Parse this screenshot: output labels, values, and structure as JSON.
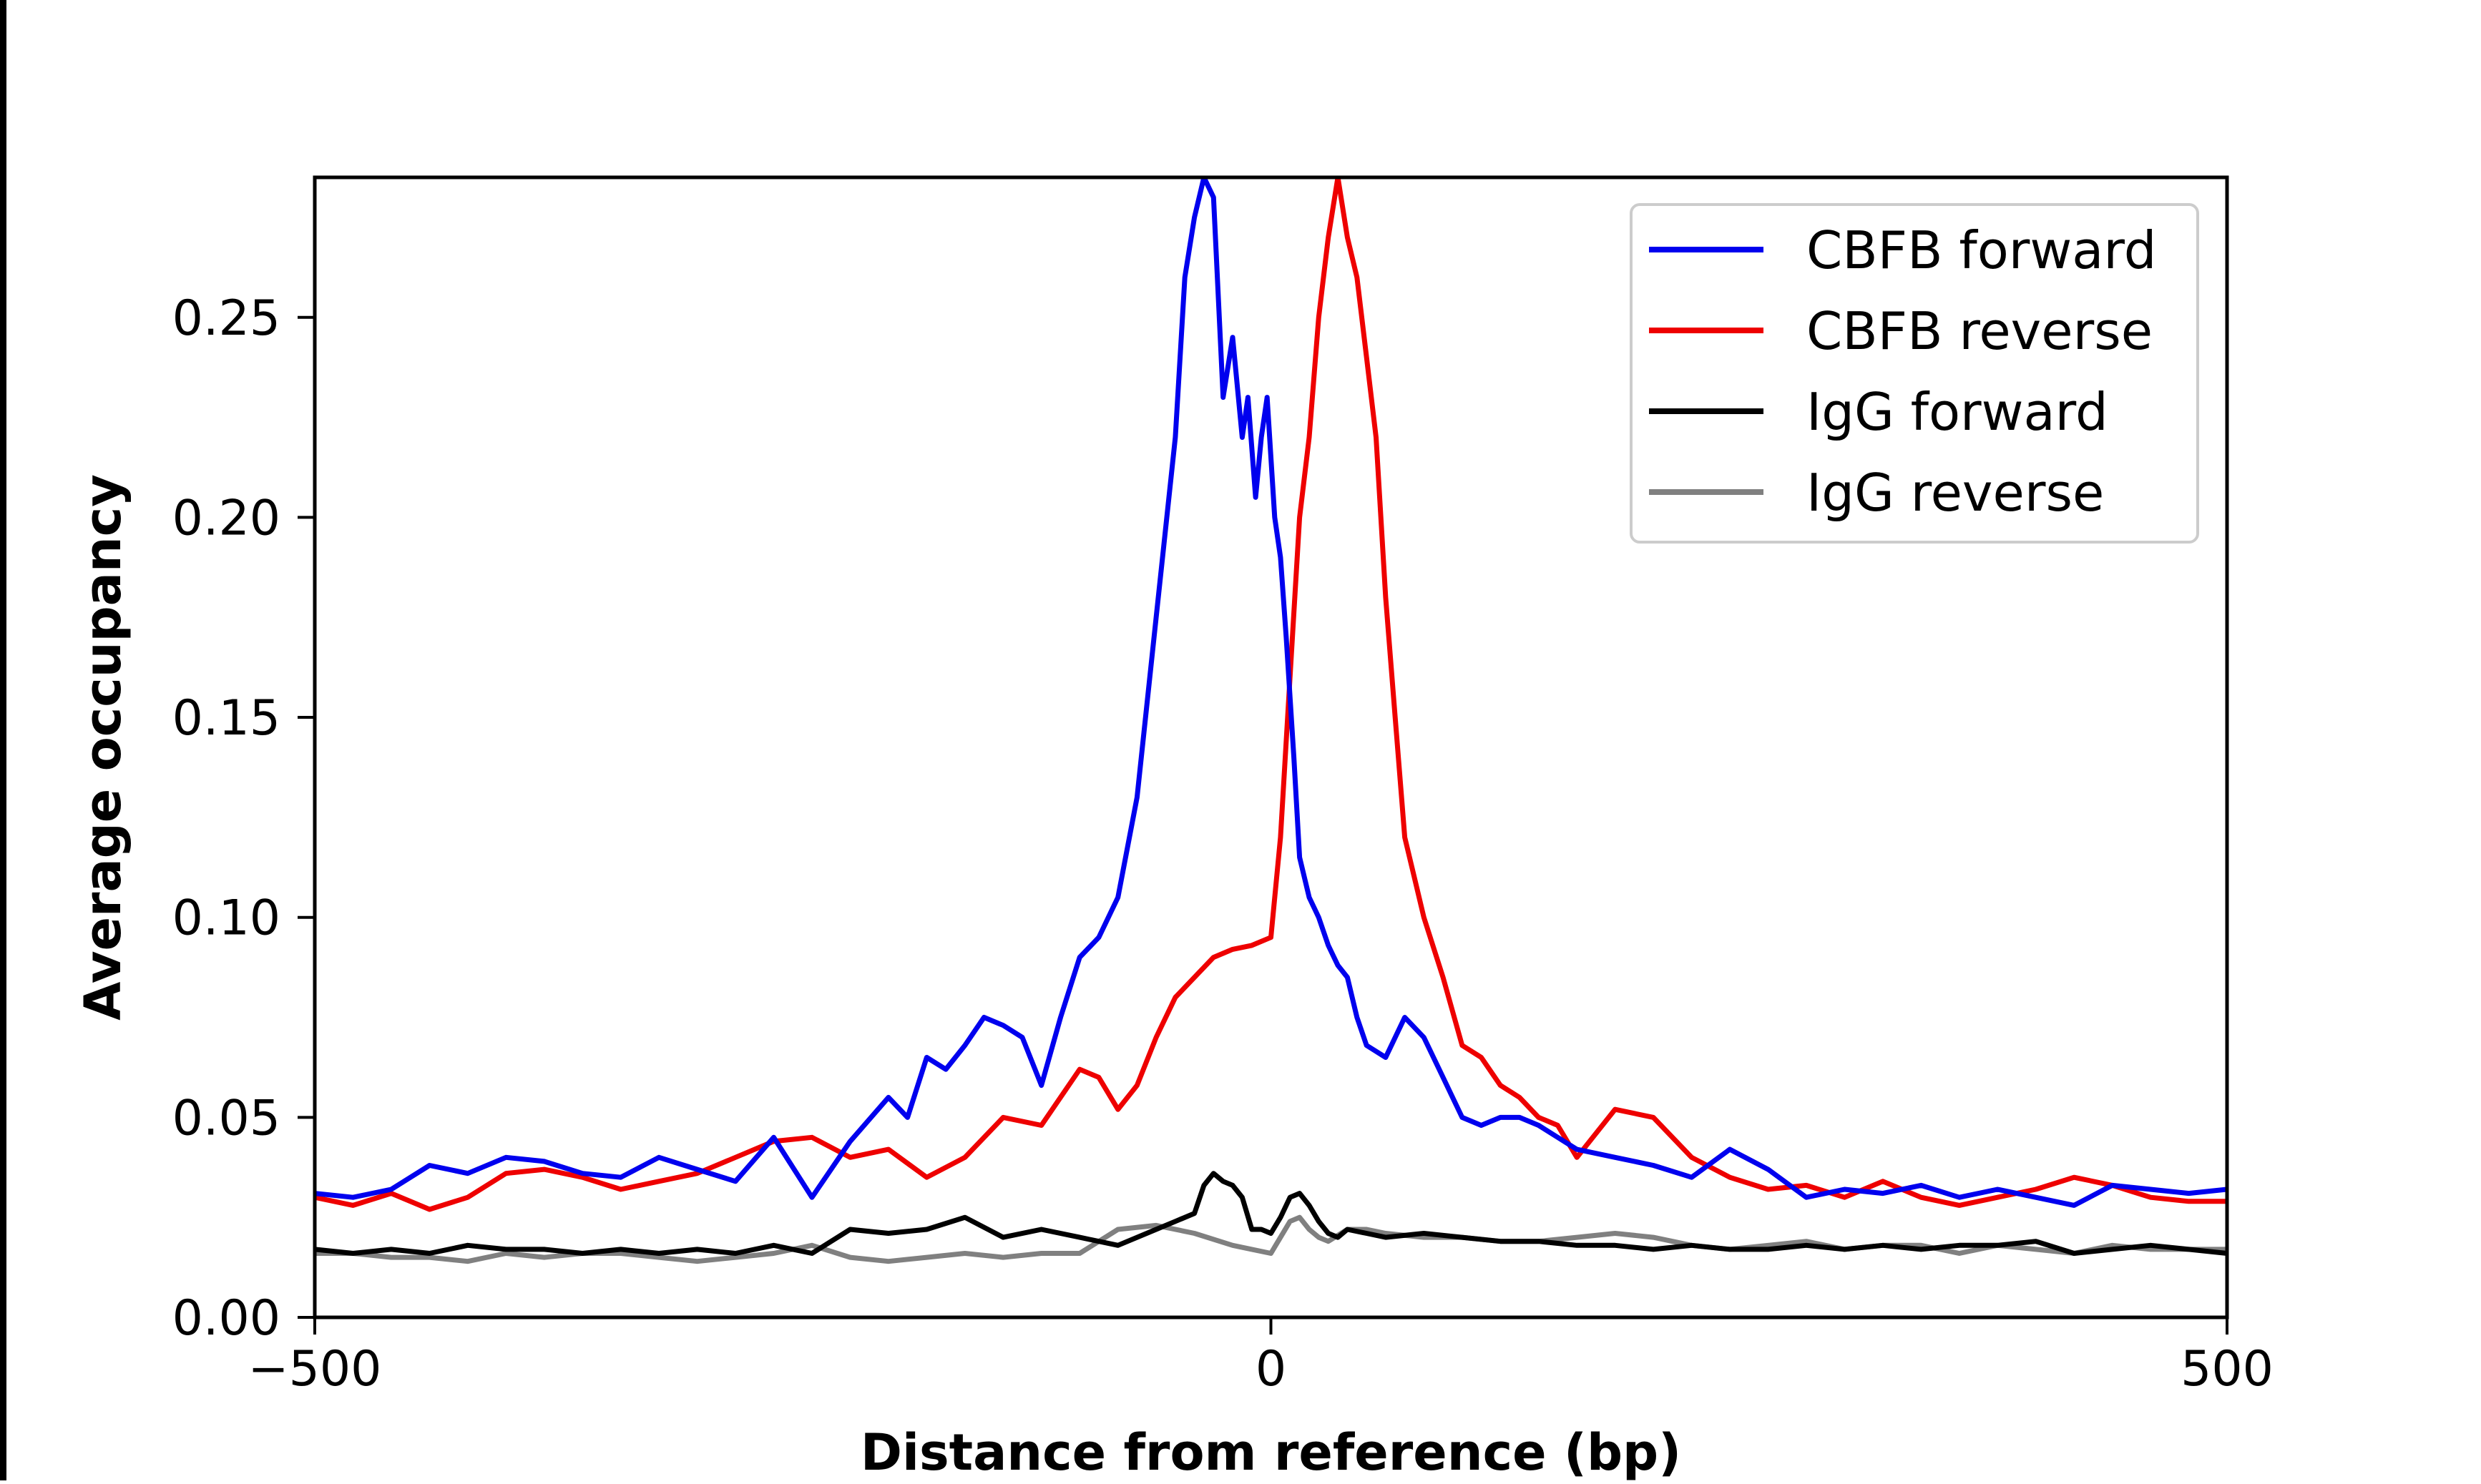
{
  "chart_data": {
    "type": "line",
    "title": "",
    "xlabel": "Distance from reference (bp)",
    "ylabel": "Average occupancy",
    "xlim": [
      -500,
      500
    ],
    "ylim": [
      0,
      0.285
    ],
    "x_ticks": [
      -500,
      0,
      500
    ],
    "x_tick_labels": [
      "−500",
      "0",
      "500"
    ],
    "y_ticks": [
      0,
      0.05,
      0.1,
      0.15,
      0.2,
      0.25
    ],
    "y_tick_labels": [
      "0.00",
      "0.05",
      "0.10",
      "0.15",
      "0.20",
      "0.25"
    ],
    "grid": false,
    "legend": "top-right",
    "series": [
      {
        "name": "CBFB forward",
        "color": "#0000ee",
        "x": [
          -500,
          -480,
          -460,
          -440,
          -420,
          -400,
          -380,
          -360,
          -340,
          -320,
          -300,
          -280,
          -260,
          -240,
          -220,
          -200,
          -190,
          -180,
          -170,
          -160,
          -150,
          -140,
          -130,
          -120,
          -110,
          -100,
          -90,
          -80,
          -70,
          -60,
          -50,
          -45,
          -40,
          -35,
          -30,
          -25,
          -20,
          -15,
          -12,
          -8,
          -5,
          -2,
          2,
          5,
          8,
          12,
          15,
          20,
          25,
          30,
          35,
          40,
          45,
          50,
          60,
          70,
          80,
          90,
          100,
          110,
          120,
          130,
          140,
          150,
          160,
          180,
          200,
          220,
          240,
          260,
          280,
          300,
          320,
          340,
          360,
          380,
          400,
          420,
          440,
          460,
          480,
          500
        ],
        "y": [
          0.031,
          0.03,
          0.032,
          0.038,
          0.036,
          0.04,
          0.039,
          0.036,
          0.035,
          0.04,
          0.037,
          0.034,
          0.045,
          0.03,
          0.044,
          0.055,
          0.05,
          0.065,
          0.062,
          0.068,
          0.075,
          0.073,
          0.07,
          0.058,
          0.075,
          0.09,
          0.095,
          0.105,
          0.13,
          0.175,
          0.22,
          0.26,
          0.275,
          0.285,
          0.28,
          0.23,
          0.245,
          0.22,
          0.23,
          0.205,
          0.22,
          0.23,
          0.2,
          0.19,
          0.17,
          0.14,
          0.115,
          0.105,
          0.1,
          0.093,
          0.088,
          0.085,
          0.075,
          0.068,
          0.065,
          0.075,
          0.07,
          0.06,
          0.05,
          0.048,
          0.05,
          0.05,
          0.048,
          0.045,
          0.042,
          0.04,
          0.038,
          0.035,
          0.042,
          0.037,
          0.03,
          0.032,
          0.031,
          0.033,
          0.03,
          0.032,
          0.03,
          0.028,
          0.033,
          0.032,
          0.031,
          0.032
        ]
      },
      {
        "name": "CBFB reverse",
        "color": "#ee0000",
        "x": [
          -500,
          -480,
          -460,
          -440,
          -420,
          -400,
          -380,
          -360,
          -340,
          -320,
          -300,
          -280,
          -260,
          -240,
          -220,
          -200,
          -180,
          -160,
          -140,
          -120,
          -100,
          -90,
          -80,
          -70,
          -60,
          -50,
          -40,
          -30,
          -20,
          -10,
          0,
          5,
          10,
          15,
          20,
          25,
          30,
          35,
          40,
          45,
          50,
          55,
          60,
          65,
          70,
          75,
          80,
          90,
          100,
          110,
          120,
          130,
          140,
          150,
          160,
          180,
          200,
          220,
          240,
          260,
          280,
          300,
          320,
          340,
          360,
          380,
          400,
          420,
          440,
          460,
          480,
          500
        ],
        "y": [
          0.03,
          0.028,
          0.031,
          0.027,
          0.03,
          0.036,
          0.037,
          0.035,
          0.032,
          0.034,
          0.036,
          0.04,
          0.044,
          0.045,
          0.04,
          0.042,
          0.035,
          0.04,
          0.05,
          0.048,
          0.062,
          0.06,
          0.052,
          0.058,
          0.07,
          0.08,
          0.085,
          0.09,
          0.092,
          0.093,
          0.095,
          0.12,
          0.16,
          0.2,
          0.22,
          0.25,
          0.27,
          0.285,
          0.27,
          0.26,
          0.24,
          0.22,
          0.18,
          0.15,
          0.12,
          0.11,
          0.1,
          0.085,
          0.068,
          0.065,
          0.058,
          0.055,
          0.05,
          0.048,
          0.04,
          0.052,
          0.05,
          0.04,
          0.035,
          0.032,
          0.033,
          0.03,
          0.034,
          0.03,
          0.028,
          0.03,
          0.032,
          0.035,
          0.033,
          0.03,
          0.029,
          0.029
        ]
      },
      {
        "name": "IgG forward",
        "color": "#000000",
        "x": [
          -500,
          -480,
          -460,
          -440,
          -420,
          -400,
          -380,
          -360,
          -340,
          -320,
          -300,
          -280,
          -260,
          -240,
          -220,
          -200,
          -180,
          -160,
          -140,
          -120,
          -100,
          -80,
          -60,
          -50,
          -40,
          -35,
          -30,
          -25,
          -20,
          -15,
          -10,
          -5,
          0,
          5,
          10,
          15,
          20,
          25,
          30,
          35,
          40,
          50,
          60,
          80,
          100,
          120,
          140,
          160,
          180,
          200,
          220,
          240,
          260,
          280,
          300,
          320,
          340,
          360,
          380,
          400,
          420,
          440,
          460,
          480,
          500
        ],
        "y": [
          0.017,
          0.016,
          0.017,
          0.016,
          0.018,
          0.017,
          0.017,
          0.016,
          0.017,
          0.016,
          0.017,
          0.016,
          0.018,
          0.016,
          0.022,
          0.021,
          0.022,
          0.025,
          0.02,
          0.022,
          0.02,
          0.018,
          0.022,
          0.024,
          0.026,
          0.033,
          0.036,
          0.034,
          0.033,
          0.03,
          0.022,
          0.022,
          0.021,
          0.025,
          0.03,
          0.031,
          0.028,
          0.024,
          0.021,
          0.02,
          0.022,
          0.021,
          0.02,
          0.021,
          0.02,
          0.019,
          0.019,
          0.018,
          0.018,
          0.017,
          0.018,
          0.017,
          0.017,
          0.018,
          0.017,
          0.018,
          0.017,
          0.018,
          0.018,
          0.019,
          0.016,
          0.017,
          0.018,
          0.017,
          0.016
        ]
      },
      {
        "name": "IgG reverse",
        "color": "#808080",
        "x": [
          -500,
          -480,
          -460,
          -440,
          -420,
          -400,
          -380,
          -360,
          -340,
          -320,
          -300,
          -280,
          -260,
          -240,
          -220,
          -200,
          -180,
          -160,
          -140,
          -120,
          -100,
          -80,
          -60,
          -40,
          -20,
          -10,
          0,
          5,
          10,
          15,
          20,
          25,
          30,
          40,
          50,
          60,
          80,
          100,
          120,
          140,
          160,
          180,
          200,
          220,
          240,
          260,
          280,
          300,
          320,
          340,
          360,
          380,
          400,
          420,
          440,
          460,
          480,
          500
        ],
        "y": [
          0.016,
          0.016,
          0.015,
          0.015,
          0.014,
          0.016,
          0.015,
          0.016,
          0.016,
          0.015,
          0.014,
          0.015,
          0.016,
          0.018,
          0.015,
          0.014,
          0.015,
          0.016,
          0.015,
          0.016,
          0.016,
          0.022,
          0.023,
          0.021,
          0.018,
          0.017,
          0.016,
          0.02,
          0.024,
          0.025,
          0.022,
          0.02,
          0.019,
          0.022,
          0.022,
          0.021,
          0.02,
          0.02,
          0.019,
          0.019,
          0.02,
          0.021,
          0.02,
          0.018,
          0.017,
          0.018,
          0.019,
          0.017,
          0.018,
          0.018,
          0.016,
          0.018,
          0.017,
          0.016,
          0.018,
          0.017,
          0.017,
          0.017
        ]
      }
    ]
  }
}
